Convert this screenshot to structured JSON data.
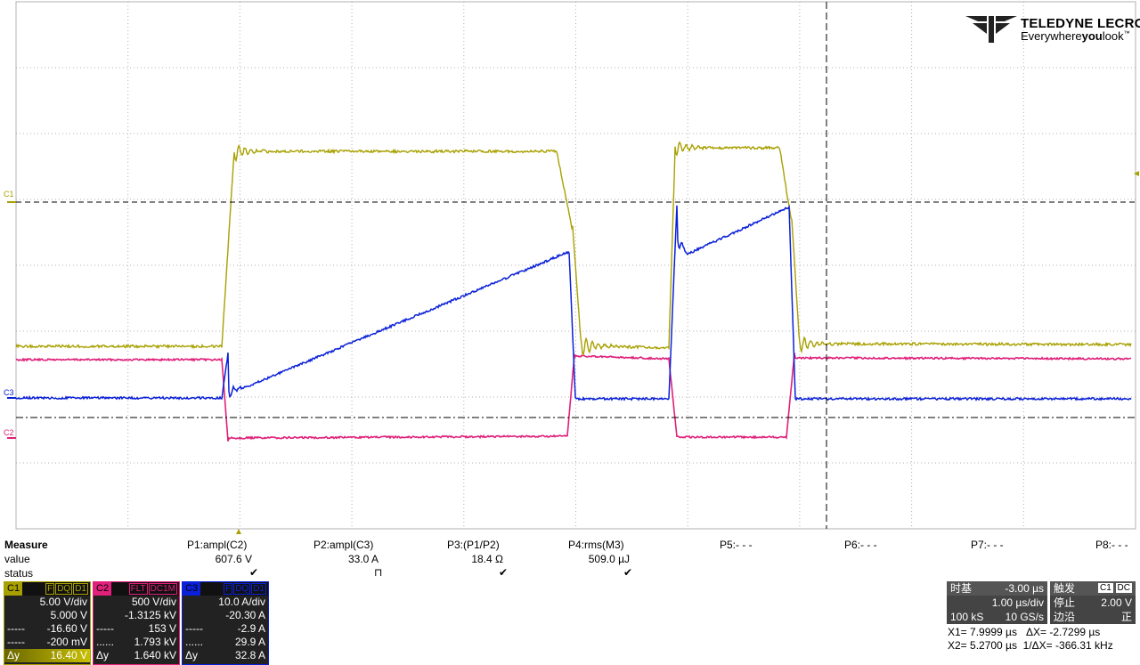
{
  "brand": {
    "name": "TELEDYNE LECROY",
    "tagline_pre": "Everywhere",
    "tagline_bold": "you",
    "tagline_post": "look",
    "tm": "™"
  },
  "channel_labels": {
    "c1": "C1",
    "c2": "C2",
    "c3": "C3"
  },
  "colors": {
    "c1": "#a8a000",
    "c2": "#e0207a",
    "c3": "#0a20d8",
    "grid": "#b0b0b0"
  },
  "measure": {
    "title": "Measure",
    "row_value": "value",
    "row_status": "status",
    "params": [
      {
        "name": "P1:ampl(C2)",
        "value": "607.6 V",
        "status": "✔"
      },
      {
        "name": "P2:ampl(C3)",
        "value": "33.0 A",
        "status": "⊓"
      },
      {
        "name": "P3:(P1/P2)",
        "value": "18.4 Ω",
        "status": "✔"
      },
      {
        "name": "P4:rms(M3)",
        "value": "509.0 µJ",
        "status": "✔"
      },
      {
        "name": "P5:- - -",
        "value": "",
        "status": ""
      },
      {
        "name": "P6:- - -",
        "value": "",
        "status": ""
      },
      {
        "name": "P7:- - -",
        "value": "",
        "status": ""
      },
      {
        "name": "P8:- - -",
        "value": "",
        "status": ""
      }
    ]
  },
  "channels": [
    {
      "tag": "C1",
      "flags": [
        "F",
        "DQ",
        "D1"
      ],
      "scale": "5.00 V/div",
      "offset": "5.000 V",
      "r3l": "-----",
      "r3": "-16.60 V",
      "r4l": "-----",
      "r4": "-200 mV",
      "r5l": "Δy",
      "r5": "16.40 V"
    },
    {
      "tag": "C2",
      "flags": [
        "FLT",
        "DC1M"
      ],
      "scale": "500 V/div",
      "offset": "-1.3125 kV",
      "r3l": "-----",
      "r3": "153 V",
      "r4l": "......",
      "r4": "1.793 kV",
      "r5l": "Δy",
      "r5": "1.640 kV"
    },
    {
      "tag": "C3",
      "flags": [
        "F",
        "DQ",
        "D1"
      ],
      "scale": "10.0 A/div",
      "offset": "-20.30 A",
      "r3l": "-----",
      "r3": "-2.9 A",
      "r4l": "......",
      "r4": "29.9 A",
      "r5l": "Δy",
      "r5": "32.8 A"
    }
  ],
  "timebase": {
    "label": "时基",
    "delay": "-3.00 µs",
    "per_div": "1.00 µs/div",
    "samples": "100 kS",
    "rate": "10 GS/s"
  },
  "trigger": {
    "label": "触发",
    "ch": "C1",
    "coupling": "DC",
    "mode": "停止",
    "level": "2.00 V",
    "edge_label": "边沿",
    "slope": "正"
  },
  "cursors": {
    "x1": "X1= 7.9999 µs",
    "dx": "ΔX= -2.7299 µs",
    "x2": "X2= 5.2700 µs",
    "inv_dx": "1/ΔX= -366.31 kHz"
  }
}
